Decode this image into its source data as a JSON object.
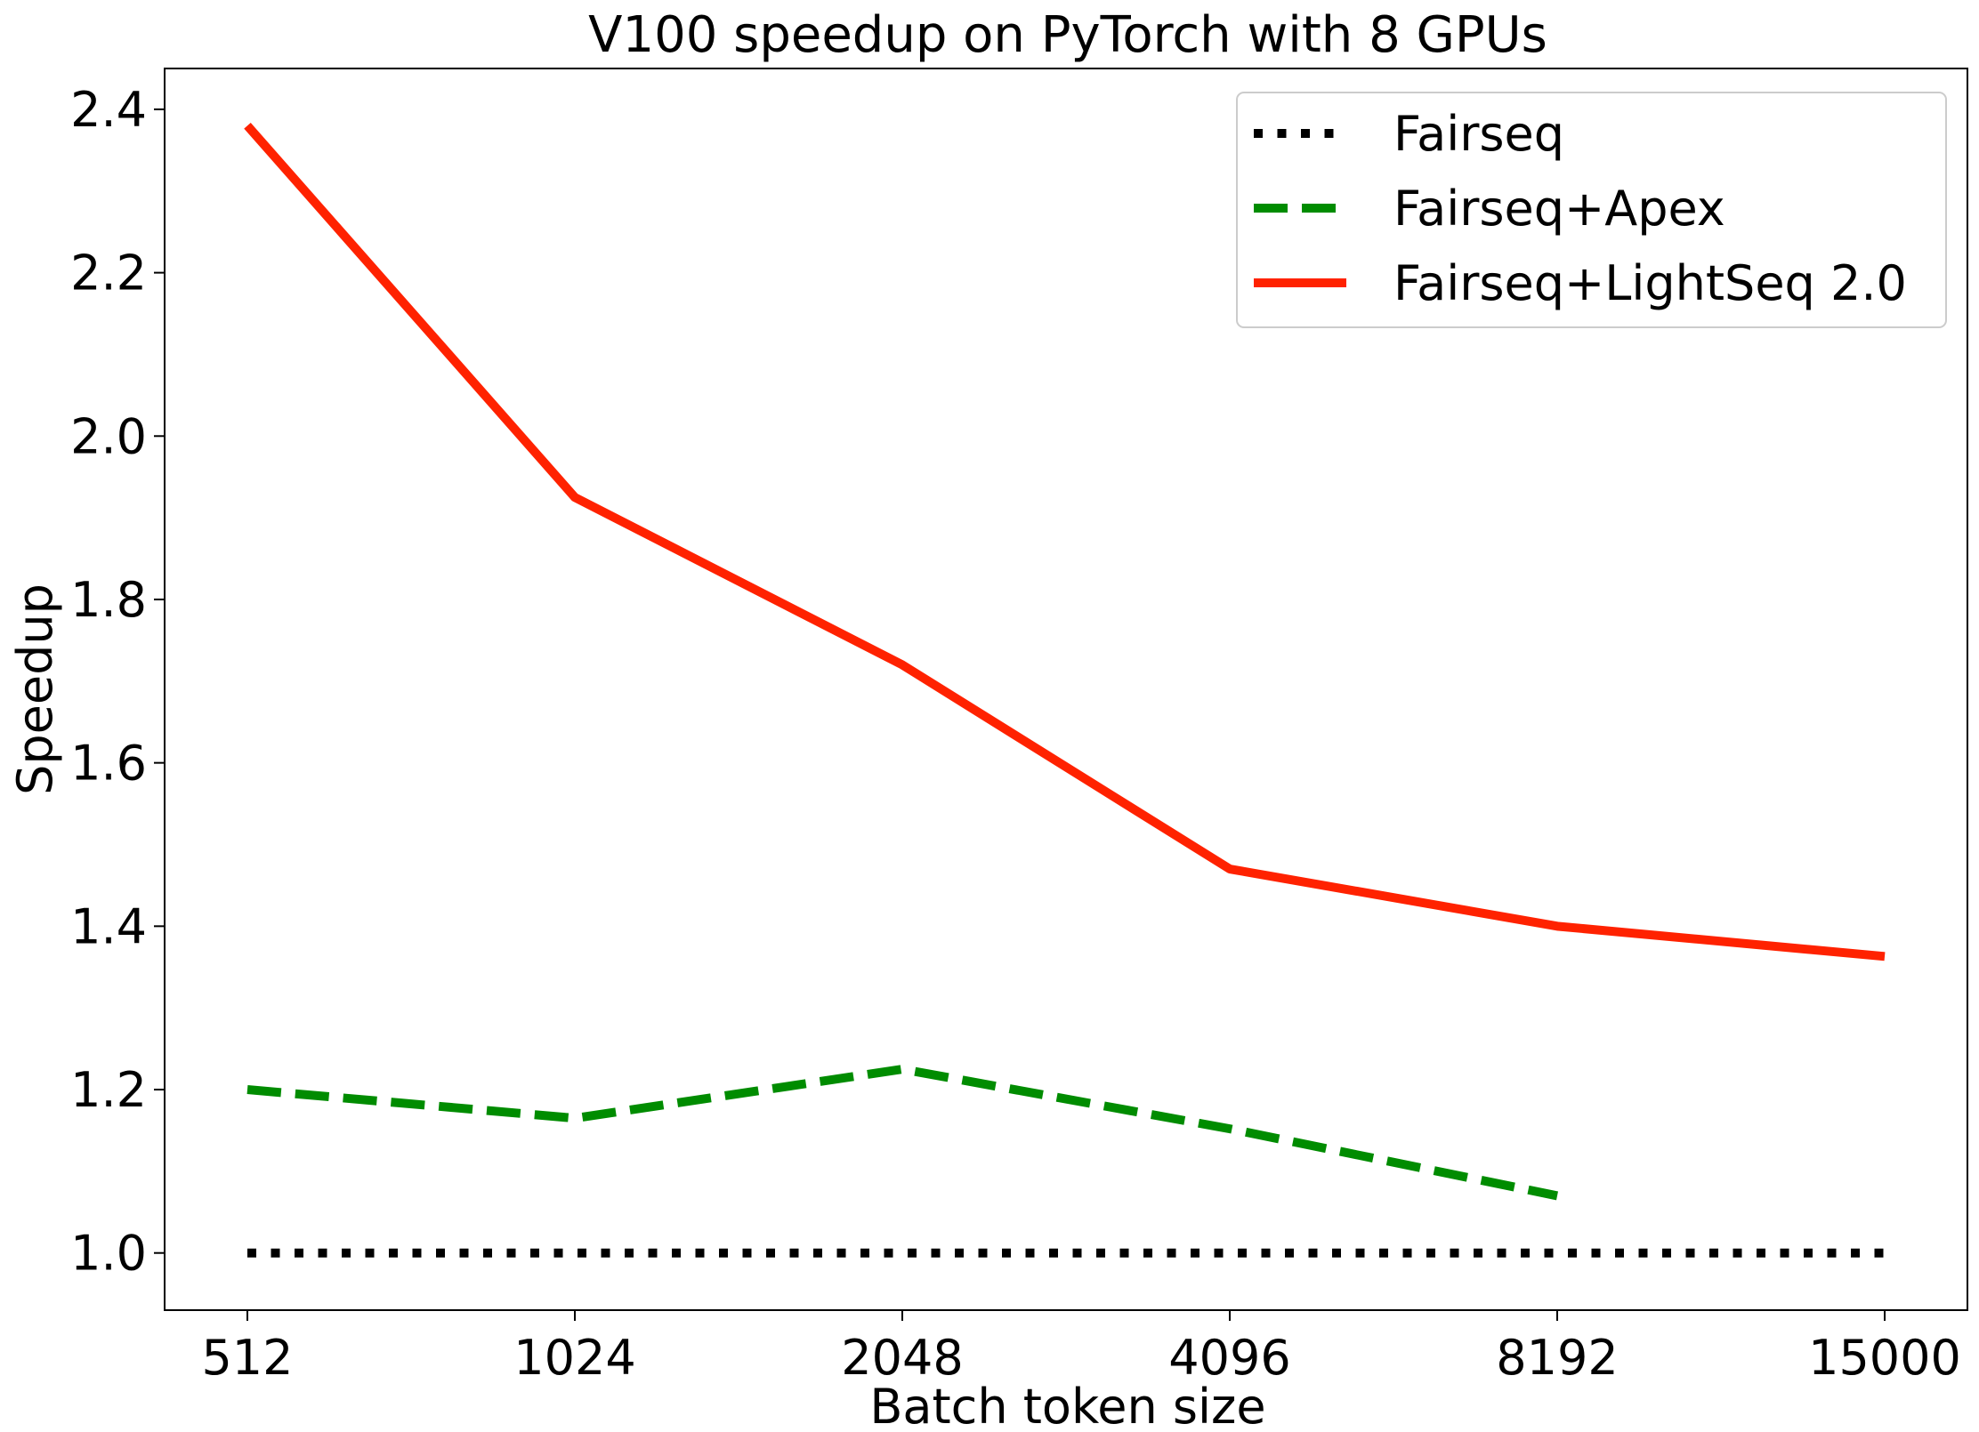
{
  "chart_data": {
    "type": "line",
    "title": "V100 speedup on PyTorch with 8 GPUs",
    "xlabel": "Batch token size",
    "ylabel": "Speedup",
    "categories": [
      "512",
      "1024",
      "2048",
      "4096",
      "8192",
      "15000"
    ],
    "yticks": [
      "1.0",
      "1.2",
      "1.4",
      "1.6",
      "1.8",
      "2.0",
      "2.2",
      "2.4"
    ],
    "ylim": [
      0.93,
      2.45
    ],
    "grid": false,
    "legend_position": "top-right",
    "series": [
      {
        "name": "Fairseq",
        "values": [
          1.0,
          1.0,
          1.0,
          1.0,
          1.0,
          1.0
        ],
        "color": "#000000",
        "style": "dotted"
      },
      {
        "name": "Fairseq+Apex",
        "values": [
          1.2,
          1.165,
          1.225,
          1.152,
          1.07,
          null
        ],
        "color": "#008c00",
        "style": "dashed"
      },
      {
        "name": "Fairseq+LightSeq 2.0",
        "values": [
          2.38,
          1.925,
          1.72,
          1.47,
          1.4,
          1.363
        ],
        "color": "#ff2200",
        "style": "solid"
      }
    ]
  }
}
